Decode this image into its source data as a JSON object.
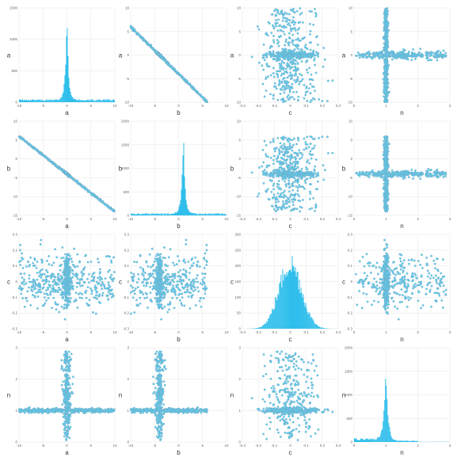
{
  "chart_data": {
    "type": "scatter-matrix",
    "variables": [
      "a",
      "b",
      "c",
      "n"
    ],
    "colors": {
      "fill": "#5bd0f0",
      "stroke": "#7f98b2",
      "hist": "#1ab8ea",
      "grid": "#e6e6e6"
    },
    "ranges": {
      "a": [
        -10,
        10
      ],
      "b": [
        -10,
        10
      ],
      "c": [
        -0.3,
        0.3
      ],
      "n": [
        0,
        3
      ]
    },
    "ticks": {
      "a": [
        "-10",
        "-5",
        "0",
        "5",
        "10"
      ],
      "b": [
        "-10",
        "-5",
        "0",
        "5",
        "10"
      ],
      "c": [
        "-0.3",
        "-0.2",
        "-0.1",
        "0",
        "0.1",
        "0.2",
        "0.3"
      ],
      "n": [
        "0",
        "1",
        "2",
        "3"
      ]
    },
    "y_ticks": {
      "a": [
        "-10",
        "-5",
        "0",
        "5",
        "10"
      ],
      "b": [
        "-15",
        "-10",
        "-5",
        "0",
        "5",
        "10"
      ],
      "c": [
        "-0.3",
        "-0.2",
        "-0.1",
        "0",
        "0.1",
        "0.2",
        "0.3"
      ],
      "n": [
        "0",
        "1",
        "2",
        "3"
      ]
    },
    "histograms": {
      "a": {
        "ymax": 1500,
        "yticks": [
          "0",
          "500",
          "1000",
          "1500"
        ],
        "peak_x": 0,
        "peak_count": 1300
      },
      "b": {
        "ymax": 2000,
        "yticks": [
          "0",
          "500",
          "1000",
          "1500",
          "2000"
        ],
        "peak_x": 1,
        "peak_count": 1750
      },
      "c": {
        "ymax": 300,
        "yticks": [
          "0",
          "50",
          "100",
          "150",
          "200",
          "250",
          "300"
        ],
        "peak_x": 0.0,
        "peak_count": 205
      },
      "n": {
        "ymax": 2000,
        "yticks": [
          "0",
          "500",
          "1000",
          "1500",
          "2000"
        ],
        "peak_x": 1,
        "peak_count": 1650
      }
    },
    "relations": {
      "a-b": "b = -a - 4 (tight diagonal band)",
      "n-a": "cross centered at a=0, n=1",
      "n-b": "cross centered at b=1, n=1",
      "c": "roughly normal, mean 0, sd 0.08, independent of a, b and n"
    }
  }
}
